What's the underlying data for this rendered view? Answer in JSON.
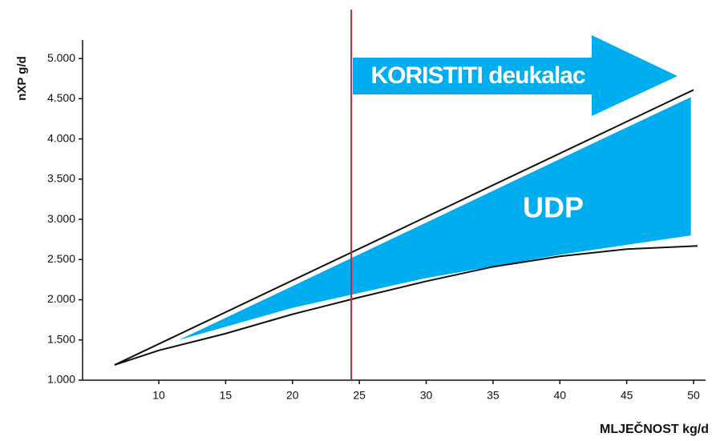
{
  "chart_data": {
    "type": "line",
    "ylabel": "nXP g/d",
    "xlabel": "MLJEČNOST kg/d",
    "xlim": [
      4.3,
      50.9
    ],
    "ylim": [
      1000,
      5230
    ],
    "xticks": [
      10,
      15,
      20,
      25,
      30,
      35,
      40,
      45,
      50
    ],
    "yticks": [
      {
        "value": 1000,
        "label": "1.000"
      },
      {
        "value": 1500,
        "label": "1.500"
      },
      {
        "value": 2000,
        "label": "2.000"
      },
      {
        "value": 2500,
        "label": "2.500"
      },
      {
        "value": 3000,
        "label": "3.000"
      },
      {
        "value": 3500,
        "label": "3.500"
      },
      {
        "value": 4000,
        "label": "4.000"
      },
      {
        "value": 4500,
        "label": "4.500"
      },
      {
        "value": 5000,
        "label": "5.000"
      }
    ],
    "series": [
      {
        "color": "#111111",
        "x": [
          6.7,
          50
        ],
        "values": [
          1190,
          4610
        ]
      },
      {
        "color": "#111111",
        "x": [
          6.7,
          10,
          15,
          20,
          25,
          30,
          35,
          40,
          45,
          50.3
        ],
        "values": [
          1190,
          1370,
          1580,
          1820,
          2030,
          2230,
          2410,
          2540,
          2630,
          2670
        ]
      }
    ],
    "band": {
      "name": "UDP",
      "color": "#00aeef",
      "x": [
        11.5,
        20,
        30,
        40,
        49.8
      ],
      "upper": [
        1500,
        2170,
        2960,
        3750,
        4520
      ],
      "lower": [
        1500,
        1900,
        2270,
        2560,
        2800
      ]
    },
    "vline": {
      "value": 24.4,
      "color": "#c1272d"
    },
    "annotation": {
      "text": "KORISTITI deukalac",
      "color": "#00aeef"
    }
  }
}
